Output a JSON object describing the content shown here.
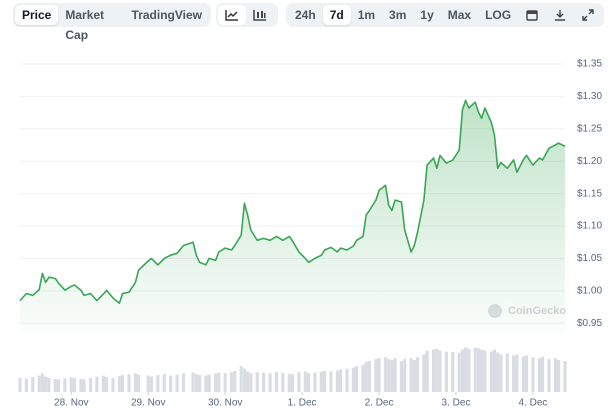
{
  "toolbar": {
    "views": [
      "Price",
      "Market Cap",
      "TradingView"
    ],
    "ranges": [
      "24h",
      "7d",
      "1m",
      "3m",
      "1y",
      "Max",
      "LOG"
    ]
  },
  "chart_data": {
    "type": "line",
    "watermark": "CoinGecko",
    "x": [
      0,
      2,
      4,
      6,
      7,
      8,
      9,
      11,
      12,
      14,
      16,
      17,
      19,
      20,
      22,
      24,
      26,
      27,
      29,
      31,
      32,
      34,
      36,
      37,
      40,
      41,
      43,
      45,
      47,
      49,
      51,
      54,
      55,
      56,
      58,
      59,
      61,
      62,
      64,
      66,
      67,
      69,
      70,
      71,
      72,
      74,
      76,
      78,
      80,
      82,
      84,
      85,
      87,
      89,
      90,
      92,
      94,
      95,
      97,
      99,
      100,
      102,
      104,
      105,
      107,
      108,
      109,
      111,
      112,
      114,
      115,
      116,
      117,
      119,
      120,
      122,
      123,
      124,
      126,
      127,
      129,
      130,
      131,
      133,
      135,
      137,
      138,
      139,
      140,
      142,
      143,
      144,
      145,
      147,
      148,
      149,
      150,
      152,
      154,
      155,
      157,
      158,
      160,
      162,
      163,
      165,
      167,
      168,
      170
    ],
    "series": [
      {
        "color": "#3aa655",
        "values": [
          0.985,
          0.996,
          0.993,
          1.002,
          1.027,
          1.013,
          1.021,
          1.019,
          1.012,
          1.001,
          1.007,
          1.009,
          1.001,
          0.993,
          0.996,
          0.985,
          0.995,
          1.001,
          0.989,
          0.981,
          0.996,
          0.998,
          1.013,
          1.032,
          1.046,
          1.05,
          1.04,
          1.05,
          1.055,
          1.058,
          1.07,
          1.075,
          1.055,
          1.044,
          1.04,
          1.05,
          1.047,
          1.06,
          1.066,
          1.063,
          1.07,
          1.086,
          1.135,
          1.117,
          1.094,
          1.078,
          1.081,
          1.078,
          1.084,
          1.078,
          1.084,
          1.077,
          1.06,
          1.05,
          1.044,
          1.05,
          1.055,
          1.063,
          1.067,
          1.06,
          1.066,
          1.063,
          1.069,
          1.078,
          1.084,
          1.117,
          1.124,
          1.14,
          1.155,
          1.163,
          1.132,
          1.124,
          1.14,
          1.137,
          1.094,
          1.06,
          1.07,
          1.09,
          1.14,
          1.194,
          1.205,
          1.189,
          1.209,
          1.197,
          1.202,
          1.217,
          1.279,
          1.294,
          1.282,
          1.291,
          1.276,
          1.266,
          1.282,
          1.26,
          1.24,
          1.189,
          1.198,
          1.189,
          1.202,
          1.183,
          1.202,
          1.209,
          1.194,
          1.205,
          1.202,
          1.22,
          1.225,
          1.228,
          1.223
        ]
      },
      {
        "type": "bar",
        "axis": "y2",
        "color": "#d9dde3",
        "values": [
          30,
          28,
          32,
          35,
          40,
          33,
          30,
          28,
          27,
          29,
          31,
          30,
          28,
          27,
          30,
          33,
          35,
          32,
          30,
          34,
          36,
          38,
          40,
          37,
          35,
          33,
          36,
          38,
          35,
          37,
          40,
          42,
          38,
          36,
          35,
          37,
          39,
          41,
          40,
          42,
          45,
          55,
          50,
          44,
          40,
          42,
          41,
          40,
          43,
          41,
          39,
          38,
          42,
          44,
          40,
          41,
          43,
          45,
          44,
          46,
          48,
          50,
          52,
          55,
          58,
          64,
          66,
          70,
          72,
          74,
          70,
          68,
          72,
          66,
          70,
          72,
          68,
          74,
          80,
          88,
          90,
          92,
          88,
          86,
          85,
          84,
          90,
          95,
          92,
          94,
          93,
          90,
          88,
          86,
          90,
          84,
          80,
          82,
          78,
          80,
          76,
          78,
          74,
          72,
          75,
          70,
          72,
          68,
          66
        ]
      }
    ],
    "xlim": [
      0,
      170
    ],
    "xticks": [
      {
        "value": 16,
        "label": "28. Nov"
      },
      {
        "value": 40,
        "label": "29. Nov"
      },
      {
        "value": 64,
        "label": "30. Nov"
      },
      {
        "value": 88,
        "label": "1. Dec"
      },
      {
        "value": 112,
        "label": "2. Dec"
      },
      {
        "value": 136,
        "label": "3. Dec"
      },
      {
        "value": 160,
        "label": "4. Dec"
      }
    ],
    "ylim": [
      0.935,
      1.37
    ],
    "yticks": [
      {
        "value": 0.95,
        "label": "$0.95"
      },
      {
        "value": 1,
        "label": "$1.00"
      },
      {
        "value": 1.05,
        "label": "$1.05"
      },
      {
        "value": 1.1,
        "label": "$1.10"
      },
      {
        "value": 1.15,
        "label": "$1.15"
      },
      {
        "value": 1.2,
        "label": "$1.20"
      },
      {
        "value": 1.25,
        "label": "$1.25"
      },
      {
        "value": 1.3,
        "label": "$1.30"
      },
      {
        "value": 1.35,
        "label": "$1.35"
      }
    ],
    "y2lim": [
      0,
      100
    ],
    "grid": true
  }
}
